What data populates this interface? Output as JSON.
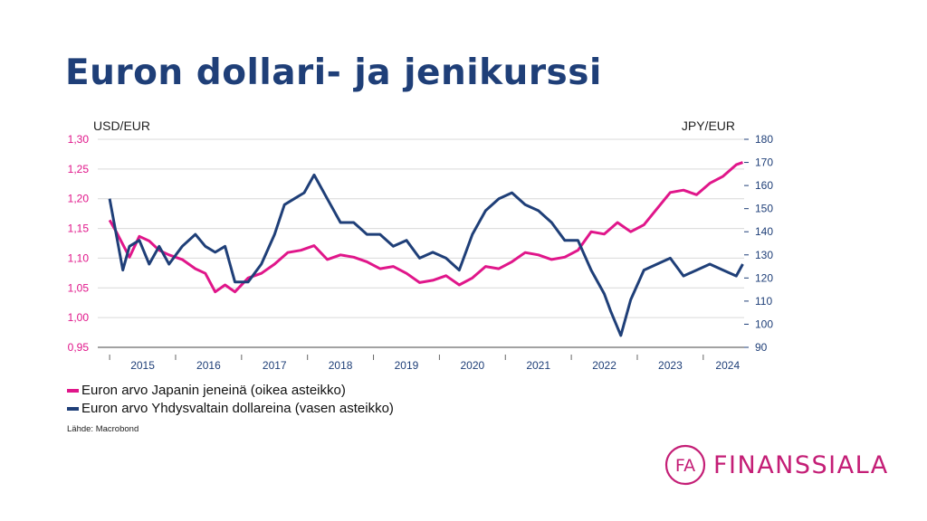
{
  "page_title": "Euron dollari- ja jenikurssi",
  "chart_data": {
    "type": "line",
    "left_axis_label": "USD/EUR",
    "right_axis_label": "JPY/EUR",
    "left_ylim": [
      0.95,
      1.3
    ],
    "right_ylim": [
      90,
      180
    ],
    "left_ticks": [
      "1,30",
      "1,25",
      "1,20",
      "1,15",
      "1,10",
      "1,05",
      "1,00",
      "0,95"
    ],
    "right_ticks": [
      "180",
      "170",
      "160",
      "150",
      "140",
      "130",
      "120",
      "110",
      "100",
      "90"
    ],
    "x_categories": [
      "2015",
      "2016",
      "2017",
      "2018",
      "2019",
      "2020",
      "2021",
      "2022",
      "2023",
      "2024"
    ],
    "grid": true,
    "series": [
      {
        "name": "Euron arvo Japanin jeneinä (oikea asteikko)",
        "axis": "right",
        "color": "#e0168a",
        "x": [
          2015.0,
          2015.1,
          2015.3,
          2015.45,
          2015.6,
          2015.75,
          2015.9,
          2016.1,
          2016.3,
          2016.45,
          2016.6,
          2016.75,
          2016.9,
          2017.1,
          2017.3,
          2017.5,
          2017.7,
          2017.9,
          2018.1,
          2018.3,
          2018.5,
          2018.7,
          2018.9,
          2019.1,
          2019.3,
          2019.5,
          2019.7,
          2019.9,
          2020.1,
          2020.3,
          2020.5,
          2020.7,
          2020.9,
          2021.1,
          2021.3,
          2021.5,
          2021.7,
          2021.9,
          2022.1,
          2022.3,
          2022.5,
          2022.7,
          2022.9,
          2023.1,
          2023.3,
          2023.5,
          2023.7,
          2023.9,
          2024.1,
          2024.3,
          2024.5,
          2024.6
        ],
        "y": [
          145,
          140,
          129,
          138,
          136,
          132,
          130,
          128,
          124,
          122,
          114,
          117,
          114,
          120,
          122,
          126,
          131,
          132,
          134,
          128,
          130,
          129,
          127,
          124,
          125,
          122,
          118,
          119,
          121,
          117,
          120,
          125,
          124,
          127,
          131,
          130,
          128,
          129,
          132,
          140,
          139,
          144,
          140,
          143,
          150,
          157,
          158,
          156,
          161,
          164,
          169,
          170
        ]
      },
      {
        "name": "Euron arvo Yhdysvaltain dollareina (vasen asteikko)",
        "axis": "left",
        "color": "#1f3f78",
        "x": [
          2015.0,
          2015.1,
          2015.2,
          2015.3,
          2015.45,
          2015.6,
          2015.75,
          2015.9,
          2016.1,
          2016.3,
          2016.45,
          2016.6,
          2016.75,
          2016.9,
          2017.1,
          2017.3,
          2017.5,
          2017.65,
          2017.8,
          2017.95,
          2018.1,
          2018.3,
          2018.5,
          2018.7,
          2018.9,
          2019.1,
          2019.3,
          2019.5,
          2019.7,
          2019.9,
          2020.1,
          2020.3,
          2020.5,
          2020.7,
          2020.9,
          2021.1,
          2021.3,
          2021.5,
          2021.7,
          2021.9,
          2022.1,
          2022.3,
          2022.5,
          2022.6,
          2022.75,
          2022.9,
          2023.1,
          2023.3,
          2023.5,
          2023.7,
          2023.9,
          2024.1,
          2024.3,
          2024.5,
          2024.6
        ],
        "y": [
          1.2,
          1.14,
          1.08,
          1.12,
          1.13,
          1.09,
          1.12,
          1.09,
          1.12,
          1.14,
          1.12,
          1.11,
          1.12,
          1.06,
          1.06,
          1.09,
          1.14,
          1.19,
          1.2,
          1.21,
          1.24,
          1.2,
          1.16,
          1.16,
          1.14,
          1.14,
          1.12,
          1.13,
          1.1,
          1.11,
          1.1,
          1.08,
          1.14,
          1.18,
          1.2,
          1.21,
          1.19,
          1.18,
          1.16,
          1.13,
          1.13,
          1.08,
          1.04,
          1.01,
          0.97,
          1.03,
          1.08,
          1.09,
          1.1,
          1.07,
          1.08,
          1.09,
          1.08,
          1.07,
          1.09
        ]
      }
    ],
    "source": "Lähde: Macrobond"
  },
  "logo": {
    "text": "FINANSSIALA",
    "monogram": "FA",
    "color": "#c41e76"
  },
  "colors": {
    "title": "#1f3f78",
    "pink": "#e0168a",
    "navy": "#1f3f78"
  }
}
